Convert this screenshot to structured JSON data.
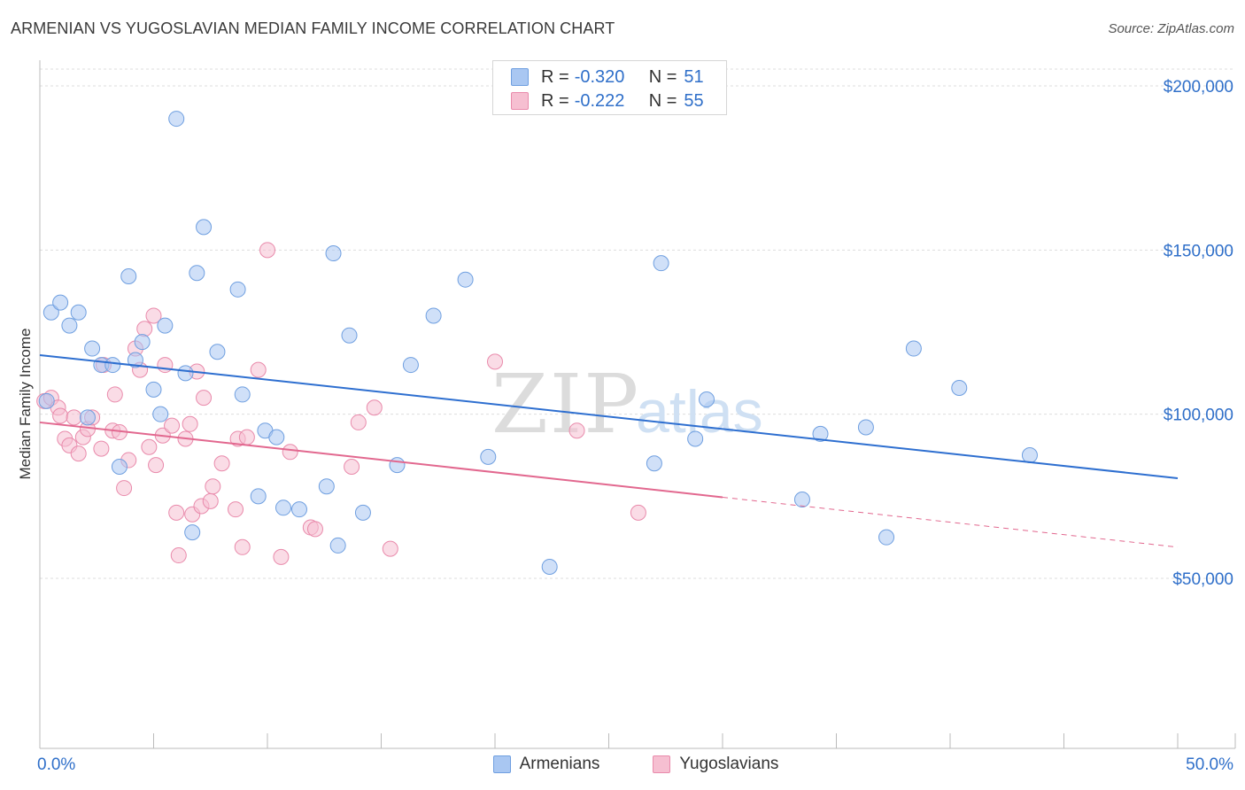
{
  "title": "ARMENIAN VS YUGOSLAVIAN MEDIAN FAMILY INCOME CORRELATION CHART",
  "source": "Source: ZipAtlas.com",
  "watermark": "ZIPatlas",
  "watermark_parts": {
    "zip": "ZIP",
    "atlas": "atlas"
  },
  "legend": {
    "rows": [
      {
        "r_label": "R =",
        "r_value": "-0.320",
        "n_label": "N =",
        "n_value": "51",
        "color": "#a9c7f2",
        "border": "#6f9fe0"
      },
      {
        "r_label": "R =",
        "r_value": "-0.222",
        "n_label": "N =",
        "n_value": "55",
        "color": "#f6bfd1",
        "border": "#e98aab"
      }
    ]
  },
  "bottom_legend": {
    "armenians": "Armenians",
    "yugoslavians": "Yugoslavians"
  },
  "chart_data": {
    "type": "scatter",
    "title": "ARMENIAN VS YUGOSLAVIAN MEDIAN FAMILY INCOME CORRELATION CHART",
    "xlabel": "",
    "ylabel": "Median Family Income",
    "xlim": [
      0,
      50
    ],
    "ylim": [
      5000,
      210000
    ],
    "x_tick_labels": {
      "min": "0.0%",
      "max": "50.0%"
    },
    "y_ticks": [
      {
        "value": 50000,
        "label": "$50,000"
      },
      {
        "value": 100000,
        "label": "$100,000"
      },
      {
        "value": 150000,
        "label": "$150,000"
      },
      {
        "value": 200000,
        "label": "$200,000"
      }
    ],
    "grid": true,
    "series": [
      {
        "name": "Armenians",
        "color": "#a9c7f2",
        "edge": "#6f9fe0",
        "line_color": "#2e6fd0",
        "trend": {
          "x0": 0,
          "y0": 118000,
          "x1": 50,
          "y1": 80500,
          "dash_from": null
        },
        "points": [
          [
            0.3,
            104000
          ],
          [
            0.5,
            131000
          ],
          [
            0.9,
            134000
          ],
          [
            1.3,
            127000
          ],
          [
            1.7,
            131000
          ],
          [
            2.1,
            99000
          ],
          [
            2.3,
            120000
          ],
          [
            2.7,
            115000
          ],
          [
            3.2,
            115000
          ],
          [
            3.5,
            84000
          ],
          [
            3.9,
            142000
          ],
          [
            4.2,
            116500
          ],
          [
            4.5,
            122000
          ],
          [
            5.0,
            107500
          ],
          [
            5.3,
            100000
          ],
          [
            5.5,
            127000
          ],
          [
            6.0,
            190000
          ],
          [
            6.4,
            112500
          ],
          [
            6.9,
            143000
          ],
          [
            6.7,
            64000
          ],
          [
            7.2,
            157000
          ],
          [
            7.8,
            119000
          ],
          [
            8.7,
            138000
          ],
          [
            8.9,
            106000
          ],
          [
            9.6,
            75000
          ],
          [
            9.9,
            95000
          ],
          [
            10.4,
            93000
          ],
          [
            10.7,
            71500
          ],
          [
            11.4,
            71000
          ],
          [
            12.6,
            78000
          ],
          [
            12.9,
            149000
          ],
          [
            13.1,
            60000
          ],
          [
            13.6,
            124000
          ],
          [
            14.2,
            70000
          ],
          [
            15.7,
            84500
          ],
          [
            16.3,
            115000
          ],
          [
            17.3,
            130000
          ],
          [
            18.7,
            141000
          ],
          [
            19.7,
            87000
          ],
          [
            22.4,
            53500
          ],
          [
            27.0,
            85000
          ],
          [
            27.3,
            146000
          ],
          [
            28.8,
            92500
          ],
          [
            29.3,
            104500
          ],
          [
            33.5,
            74000
          ],
          [
            34.3,
            94000
          ],
          [
            36.3,
            96000
          ],
          [
            37.2,
            62500
          ],
          [
            38.4,
            120000
          ],
          [
            40.4,
            108000
          ],
          [
            43.5,
            87500
          ]
        ]
      },
      {
        "name": "Yugoslavians",
        "color": "#f6bfd1",
        "edge": "#e98aab",
        "line_color": "#e2688f",
        "trend": {
          "x0": 0,
          "y0": 97500,
          "x1": 50,
          "y1": 59500,
          "dash_from": 30
        },
        "points": [
          [
            0.2,
            104000
          ],
          [
            0.5,
            105000
          ],
          [
            0.8,
            102000
          ],
          [
            0.9,
            99500
          ],
          [
            1.1,
            92500
          ],
          [
            1.3,
            90500
          ],
          [
            1.5,
            99000
          ],
          [
            1.7,
            88000
          ],
          [
            1.9,
            93000
          ],
          [
            2.1,
            95500
          ],
          [
            2.3,
            99000
          ],
          [
            2.7,
            89500
          ],
          [
            2.8,
            115000
          ],
          [
            3.2,
            95000
          ],
          [
            3.3,
            106000
          ],
          [
            3.5,
            94500
          ],
          [
            3.7,
            77500
          ],
          [
            3.9,
            86000
          ],
          [
            4.2,
            120000
          ],
          [
            4.4,
            113500
          ],
          [
            4.6,
            126000
          ],
          [
            4.8,
            90000
          ],
          [
            5.0,
            130000
          ],
          [
            5.1,
            84500
          ],
          [
            5.4,
            93500
          ],
          [
            5.5,
            115000
          ],
          [
            6.0,
            70000
          ],
          [
            6.1,
            57000
          ],
          [
            6.4,
            92500
          ],
          [
            6.6,
            97000
          ],
          [
            6.7,
            69500
          ],
          [
            6.9,
            113000
          ],
          [
            7.1,
            72000
          ],
          [
            7.2,
            105000
          ],
          [
            7.5,
            73500
          ],
          [
            7.6,
            78000
          ],
          [
            8.0,
            85000
          ],
          [
            8.6,
            71000
          ],
          [
            8.7,
            92500
          ],
          [
            8.9,
            59500
          ],
          [
            9.1,
            93000
          ],
          [
            9.6,
            113500
          ],
          [
            10.0,
            150000
          ],
          [
            10.6,
            56500
          ],
          [
            11.9,
            65500
          ],
          [
            12.1,
            65000
          ],
          [
            13.7,
            84000
          ],
          [
            14.0,
            97500
          ],
          [
            14.7,
            102000
          ],
          [
            15.4,
            59000
          ],
          [
            20.0,
            116000
          ],
          [
            23.6,
            95000
          ],
          [
            26.3,
            70000
          ],
          [
            5.8,
            96500
          ],
          [
            11.0,
            88500
          ]
        ]
      }
    ]
  }
}
